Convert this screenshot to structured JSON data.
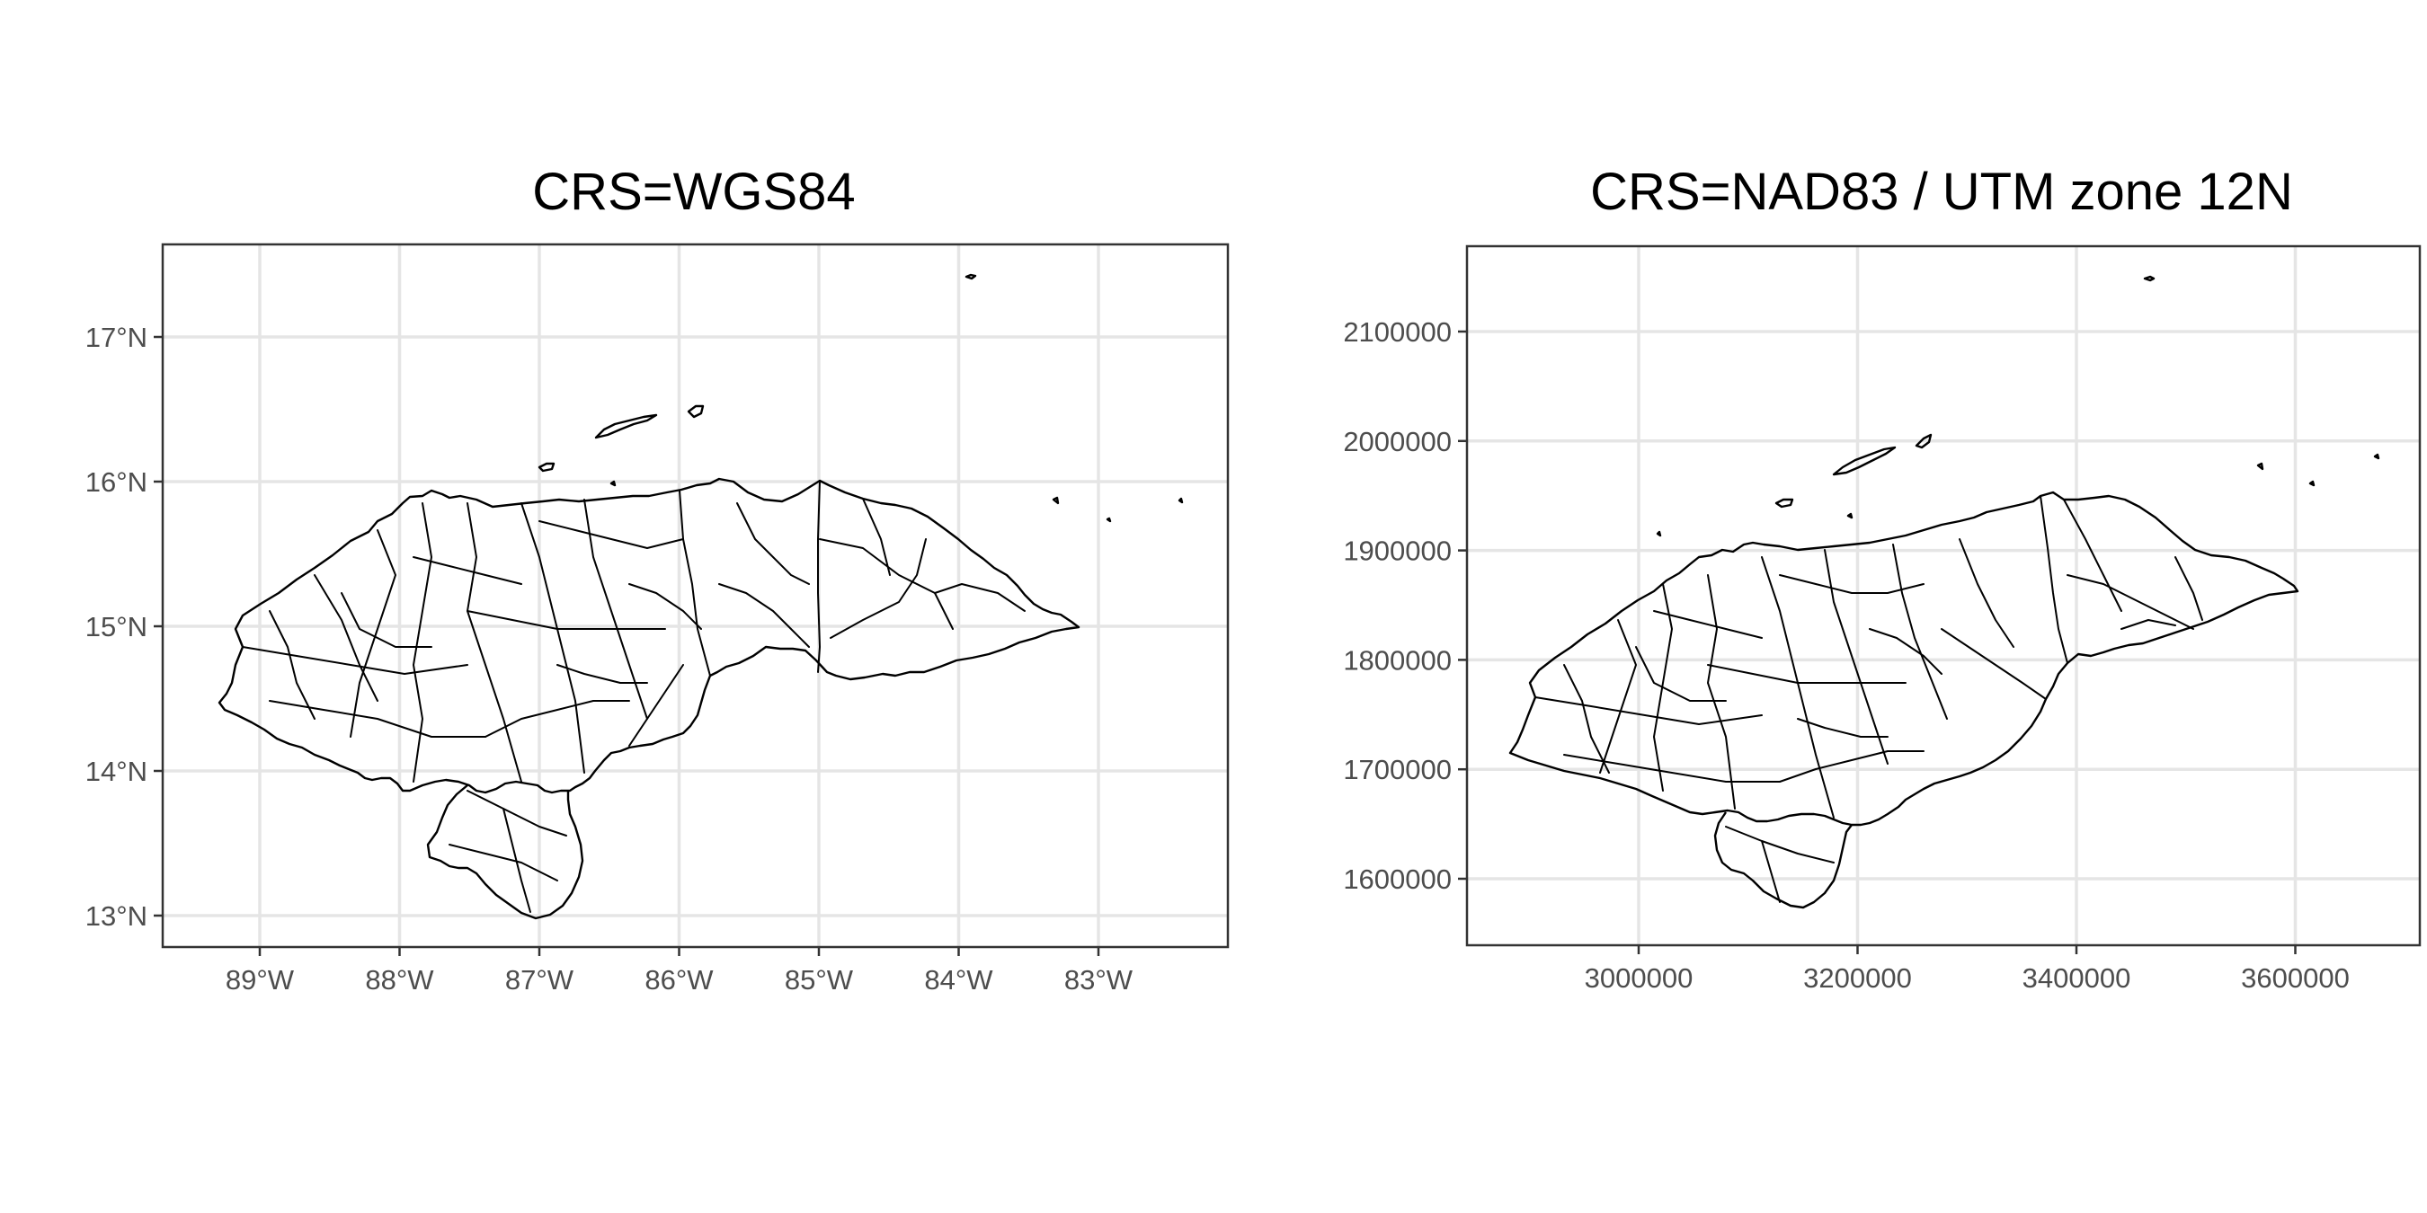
{
  "panels": [
    {
      "title": "CRS=WGS84",
      "x_ticks": [
        {
          "value": -89,
          "label": "89°W"
        },
        {
          "value": -88,
          "label": "88°W"
        },
        {
          "value": -87,
          "label": "87°W"
        },
        {
          "value": -86,
          "label": "86°W"
        },
        {
          "value": -85,
          "label": "85°W"
        },
        {
          "value": -84,
          "label": "84°W"
        },
        {
          "value": -83,
          "label": "83°W"
        }
      ],
      "y_ticks": [
        {
          "value": 13,
          "label": "13°N"
        },
        {
          "value": 14,
          "label": "14°N"
        },
        {
          "value": 15,
          "label": "15°N"
        },
        {
          "value": 16,
          "label": "16°N"
        },
        {
          "value": 17,
          "label": "17°N"
        }
      ]
    },
    {
      "title": "CRS=NAD83 / UTM zone 12N",
      "x_ticks": [
        {
          "value": 3000000,
          "label": "3000000"
        },
        {
          "value": 3200000,
          "label": "3200000"
        },
        {
          "value": 3400000,
          "label": "3400000"
        },
        {
          "value": 3600000,
          "label": "3600000"
        }
      ],
      "y_ticks": [
        {
          "value": 1600000,
          "label": "1600000"
        },
        {
          "value": 1700000,
          "label": "1700000"
        },
        {
          "value": 1800000,
          "label": "1800000"
        },
        {
          "value": 1900000,
          "label": "1900000"
        },
        {
          "value": 2000000,
          "label": "2000000"
        },
        {
          "value": 2100000,
          "label": "2100000"
        }
      ]
    }
  ],
  "map_style": {
    "background": "#ffffff",
    "gridline_color": "#e5e5e5",
    "boundary_color": "#000000",
    "panel_border_color": "#333333",
    "tick_label_color": "#4d4d4d"
  }
}
